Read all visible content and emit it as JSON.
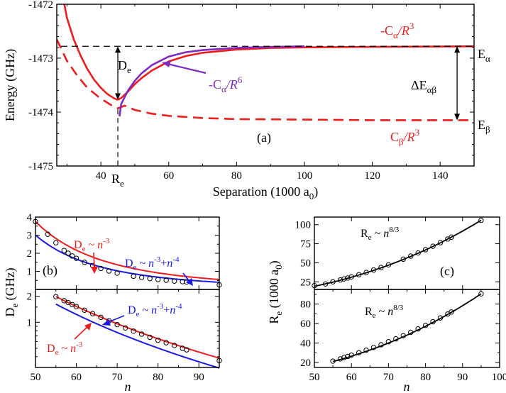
{
  "chart_data": [
    {
      "id": "a",
      "type": "line",
      "panel_label": "(a)",
      "xlabel": "Separation (1000 a",
      "xlabel_sub": "0",
      "xlabel_end": ")",
      "ylabel": "Energy (GHz)",
      "xlim": [
        27,
        150
      ],
      "ylim": [
        -1475,
        -1472
      ],
      "xticks": [
        40,
        60,
        80,
        100,
        120,
        140
      ],
      "yticks": [
        -1475,
        -1474,
        -1473,
        -1472
      ],
      "Re_x": 45,
      "E_alpha": -1472.78,
      "E_beta": -1474.15,
      "series": [
        {
          "name": "-C_alpha/R^3",
          "color": "#ee1c1c",
          "style": "solid",
          "x": [
            28,
            30,
            32,
            34,
            36,
            38,
            40,
            42,
            44,
            45,
            46,
            48,
            50,
            52,
            55,
            60,
            65,
            70,
            80,
            90,
            100,
            120,
            150
          ],
          "y": [
            -1471.6,
            -1472.25,
            -1472.65,
            -1472.95,
            -1473.2,
            -1473.4,
            -1473.55,
            -1473.67,
            -1473.75,
            -1473.77,
            -1473.74,
            -1473.62,
            -1473.48,
            -1473.37,
            -1473.23,
            -1473.06,
            -1472.96,
            -1472.9,
            -1472.84,
            -1472.81,
            -1472.8,
            -1472.79,
            -1472.78
          ]
        },
        {
          "name": "C_beta/R^3",
          "color": "#ee1c1c",
          "style": "dashed",
          "x": [
            27,
            30,
            33,
            36,
            40,
            43,
            45,
            47,
            50,
            55,
            60,
            70,
            80,
            100,
            120,
            150
          ],
          "y": [
            -1472.65,
            -1473.05,
            -1473.32,
            -1473.55,
            -1473.75,
            -1473.87,
            -1473.93,
            -1473.88,
            -1473.96,
            -1474.03,
            -1474.07,
            -1474.11,
            -1474.13,
            -1474.14,
            -1474.15,
            -1474.15
          ]
        },
        {
          "name": "-C_alpha/R^6",
          "color": "#7f2bbf",
          "style": "solid",
          "x": [
            45.5,
            46,
            48,
            50,
            52,
            55,
            60,
            65,
            70,
            80,
            90,
            100
          ],
          "y": [
            -1474.08,
            -1473.85,
            -1473.6,
            -1473.42,
            -1473.28,
            -1473.13,
            -1472.97,
            -1472.89,
            -1472.85,
            -1472.81,
            -1472.79,
            -1472.78
          ]
        }
      ],
      "labels": {
        "De": "D",
        "De_sub": "e",
        "Re": "R",
        "Re_sub": "e",
        "E_alpha": "E",
        "E_alpha_sub": "α",
        "E_beta": "E",
        "E_beta_sub": "β",
        "delta_E": "ΔE",
        "delta_E_sub": "αβ",
        "C_alpha_R3_a": "-C",
        "C_alpha_R3_sub": "α",
        "C_alpha_R3_b": "/R",
        "C_alpha_R3_sup": "3",
        "C_beta_R3_a": "C",
        "C_beta_R3_sub": "β",
        "C_beta_R3_b": "/R",
        "C_beta_R3_sup": "3",
        "C_alpha_R6_a": "-C",
        "C_alpha_R6_sub": "α",
        "C_alpha_R6_b": "/R",
        "C_alpha_R6_sup": "6"
      }
    },
    {
      "id": "b_top",
      "type": "line",
      "panel_label": "(b)",
      "xlim": [
        50,
        95
      ],
      "ylim": [
        0,
        4
      ],
      "yticks": [
        1,
        2,
        3,
        4
      ],
      "points": {
        "n": [
          50,
          53,
          55,
          57,
          58,
          59,
          60,
          62,
          64,
          66,
          68,
          70,
          74,
          76,
          78,
          80,
          82,
          84,
          86,
          87,
          95
        ],
        "value": [
          3.75,
          3.05,
          2.58,
          2.15,
          2.0,
          1.85,
          1.72,
          1.5,
          1.32,
          1.16,
          1.02,
          0.9,
          0.73,
          0.66,
          0.6,
          0.55,
          0.51,
          0.46,
          0.43,
          0.41,
          0.25
        ]
      },
      "fits": [
        {
          "name": "D_e ~ n^-3",
          "color": "#ee1c1c",
          "exponent": -3,
          "coef": 468750
        },
        {
          "name": "D_e ~ n^-3 + n^-4",
          "color": "#1a1ae6",
          "coefs": [
            300000,
            3750000
          ]
        }
      ],
      "annotations": {
        "red_a": "D",
        "red_sub": "e",
        "red_b": " ~ ",
        "red_n": "n",
        "red_sup": "-3",
        "blue_a": "D",
        "blue_sub": "e",
        "blue_b": " ~ ",
        "blue_n1": "n",
        "blue_sup1": "-3",
        "blue_plus": "+",
        "blue_n2": "n",
        "blue_sup2": "-4"
      }
    },
    {
      "id": "b_bottom",
      "type": "line",
      "xlim": [
        50,
        95
      ],
      "yscale": "log",
      "ylim": [
        0.3,
        2.4
      ],
      "yticks": [
        1,
        2
      ],
      "xticks": [
        50,
        60,
        70,
        80,
        90
      ],
      "xlabel": "n",
      "ylabel": "D",
      "ylabel_sub": "e",
      "ylabel_end": " (GHz)",
      "points": {
        "n": [
          55,
          57,
          58,
          59,
          60,
          62,
          64,
          66,
          68,
          70,
          72,
          74,
          76,
          78,
          80,
          82,
          84,
          86,
          87,
          95
        ],
        "value": [
          1.98,
          1.78,
          1.69,
          1.6,
          1.52,
          1.38,
          1.26,
          1.14,
          1.04,
          0.94,
          0.86,
          0.79,
          0.73,
          0.67,
          0.62,
          0.58,
          0.54,
          0.5,
          0.48,
          0.36
        ]
      },
      "annotations": {
        "red_a": "D",
        "red_sub": "e",
        "red_b": " ~ ",
        "red_n": "n",
        "red_sup": "-3",
        "blue_a": "D",
        "blue_sub": "e",
        "blue_b": " ~ ",
        "blue_n1": "n",
        "blue_sup1": "-3",
        "blue_plus": "+",
        "blue_n2": "n",
        "blue_sup2": "-4"
      }
    },
    {
      "id": "c_top",
      "type": "line",
      "panel_label": "(c)",
      "xlim": [
        50,
        100
      ],
      "ylim": [
        15,
        110
      ],
      "yticks": [
        25,
        50,
        75,
        100
      ],
      "ytick_labels": [
        "25",
        "50",
        "75",
        "100"
      ],
      "points": {
        "n": [
          50,
          53,
          55,
          57,
          58,
          59,
          60,
          62,
          64,
          66,
          68,
          70,
          74,
          76,
          78,
          80,
          82,
          84,
          86,
          87,
          95
        ],
        "value": [
          20.0,
          22.2,
          25.0,
          27.5,
          28.8,
          30.0,
          31.5,
          34.3,
          37.3,
          40.5,
          43.8,
          47.3,
          54.7,
          58.8,
          62.9,
          67.2,
          71.7,
          76.4,
          81.2,
          83.7,
          105.8
        ]
      },
      "annotations": {
        "a": "R",
        "sub": "e",
        "b": " ~ ",
        "n": "n",
        "sup": "8/3"
      }
    },
    {
      "id": "c_bottom",
      "type": "line",
      "xlim": [
        50,
        100
      ],
      "ylim": [
        15,
        95
      ],
      "yticks": [
        20,
        40,
        60,
        80
      ],
      "xticks": [
        50,
        60,
        70,
        80,
        90,
        100
      ],
      "xlabel": "n",
      "ylabel": "R",
      "ylabel_sub": "e",
      "ylabel_end": " (1000 a",
      "ylabel_sub2": "0",
      "ylabel_end2": ")",
      "points": {
        "n": [
          55,
          57,
          58,
          59,
          60,
          62,
          64,
          66,
          68,
          70,
          72,
          74,
          76,
          78,
          80,
          82,
          84,
          86,
          87,
          95
        ],
        "value": [
          21.5,
          23.8,
          25.2,
          26.3,
          27.6,
          30.1,
          32.7,
          35.5,
          38.3,
          41.4,
          44.4,
          47.6,
          51.0,
          54.5,
          58.1,
          61.9,
          65.8,
          69.8,
          71.9,
          90.5
        ]
      },
      "annotations": {
        "a": "R",
        "sub": "e",
        "b": " ~ ",
        "n": "n",
        "sup": "8/3"
      }
    }
  ]
}
